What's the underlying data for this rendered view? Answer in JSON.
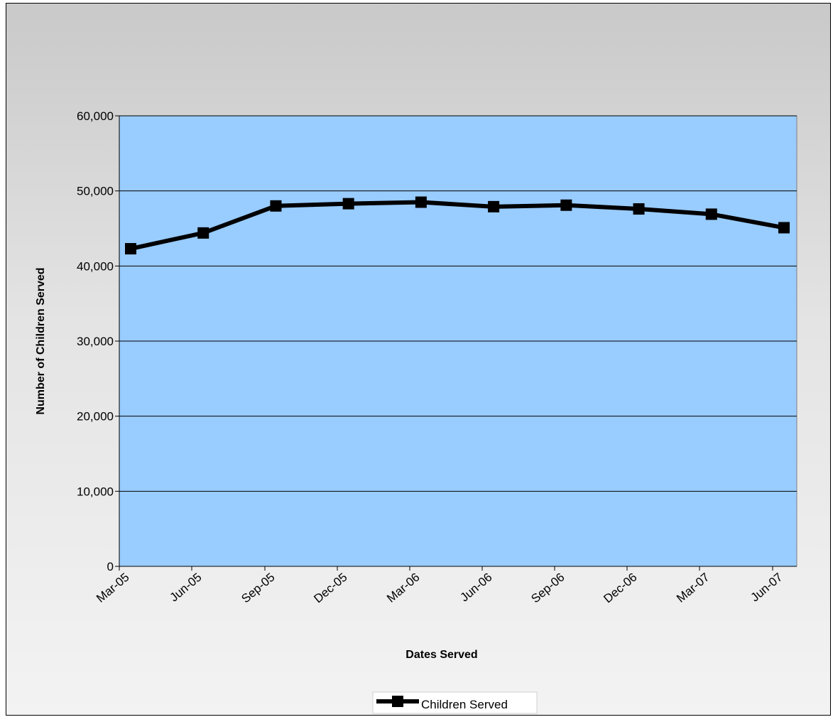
{
  "chart_data": {
    "type": "line",
    "title": "",
    "xlabel": "Dates Served",
    "ylabel": "Number of Children Served",
    "categories": [
      "Mar-05",
      "Jun-05",
      "Sep-05",
      "Dec-05",
      "Mar-06",
      "Jun-06",
      "Sep-06",
      "Dec-06",
      "Mar-07",
      "Jun-07"
    ],
    "series": [
      {
        "name": "Children Served",
        "values": [
          42300,
          44400,
          48000,
          48300,
          48500,
          47900,
          48100,
          47600,
          46900,
          45100
        ]
      }
    ],
    "ylim": [
      0,
      60000
    ],
    "yticks": [
      0,
      10000,
      20000,
      30000,
      40000,
      50000,
      60000
    ],
    "ytick_labels": [
      "0",
      "10,000",
      "20,000",
      "30,000",
      "40,000",
      "50,000",
      "60,000"
    ],
    "grid": "horizontal major gridlines",
    "legend_position": "bottom",
    "colors": {
      "plot_background": "#99ccff",
      "line": "#000000",
      "gridline": "#000000"
    }
  }
}
